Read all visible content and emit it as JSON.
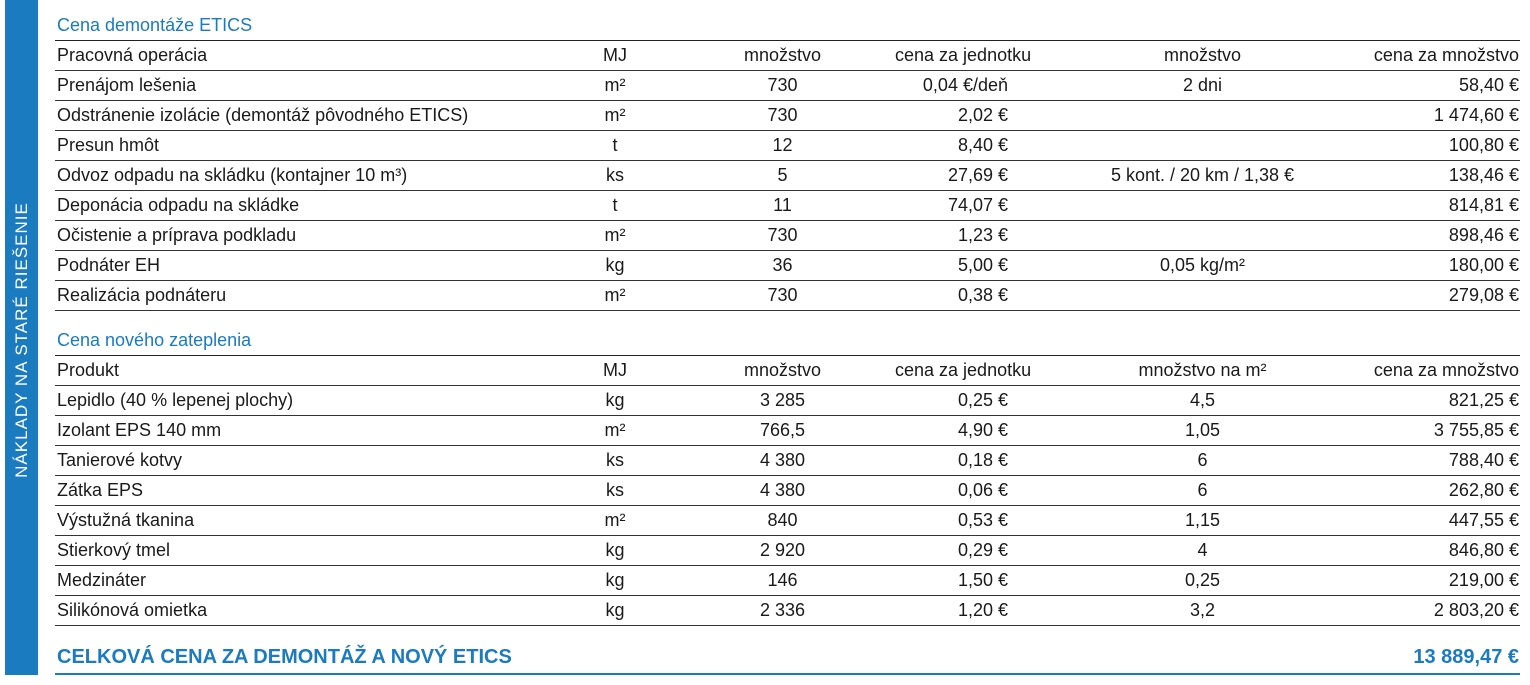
{
  "sidebar": "NÁKLADY NA STARÉ RIEŠENIE",
  "sections": [
    {
      "title": "Cena demontáže ETICS",
      "header": [
        "Pracovná operácia",
        "MJ",
        "množstvo",
        "cena za jednotku",
        "množstvo",
        "cena za množstvo"
      ],
      "rows": [
        [
          "Prenájom lešenia",
          "m²",
          "730",
          "0,04 €/deň",
          "2 dni",
          "58,40 €"
        ],
        [
          "Odstránenie izolácie (demontáž pôvodného ETICS)",
          "m²",
          "730",
          "2,02 €",
          null,
          "1 474,60 €"
        ],
        [
          "Presun hmôt",
          "t",
          "12",
          "8,40 €",
          null,
          "100,80 €"
        ],
        [
          "Odvoz odpadu na skládku (kontajner 10 m³)",
          "ks",
          "5",
          "27,69 €",
          "5 kont. / 20 km / 1,38 €",
          "138,46 €"
        ],
        [
          "Deponácia odpadu na skládke",
          "t",
          "11",
          "74,07 €",
          null,
          "814,81 €"
        ],
        [
          "Očistenie a príprava podkladu",
          "m²",
          "730",
          "1,23 €",
          null,
          "898,46 €"
        ],
        [
          "Podnáter EH",
          "kg",
          "36",
          "5,00 €",
          "0,05 kg/m²",
          "180,00 €"
        ],
        [
          "Realizácia podnáteru",
          "m²",
          "730",
          "0,38 €",
          null,
          "279,08 €"
        ]
      ]
    },
    {
      "title": "Cena nového zateplenia",
      "header": [
        "Produkt",
        "MJ",
        "množstvo",
        "cena za jednotku",
        "množstvo na m²",
        "cena za množstvo"
      ],
      "rows": [
        [
          "Lepidlo (40 % lepenej plochy)",
          "kg",
          "3 285",
          "0,25 €",
          "4,5",
          "821,25 €"
        ],
        [
          "Izolant EPS 140 mm",
          "m²",
          "766,5",
          "4,90 €",
          "1,05",
          "3 755,85 €"
        ],
        [
          "Tanierové kotvy",
          "ks",
          "4 380",
          "0,18 €",
          "6",
          "788,40 €"
        ],
        [
          "Zátka EPS",
          "ks",
          "4 380",
          "0,06 €",
          "6",
          "262,80 €"
        ],
        [
          "Výstužná tkanina",
          "m²",
          "840",
          "0,53 €",
          "1,15",
          "447,55 €"
        ],
        [
          "Stierkový tmel",
          "kg",
          "2 920",
          "0,29 €",
          "4",
          "846,80 €"
        ],
        [
          "Medzináter",
          "kg",
          "146",
          "1,50 €",
          "0,25",
          "219,00 €"
        ],
        [
          "Silikónová omietka",
          "kg",
          "2 336",
          "1,20 €",
          "3,2",
          "2 803,20 €"
        ]
      ]
    }
  ],
  "total": {
    "label": "CELKOVÁ CENA ZA DEMONTÁŽ A NOVÝ ETICS",
    "value": "13 889,47 €"
  }
}
